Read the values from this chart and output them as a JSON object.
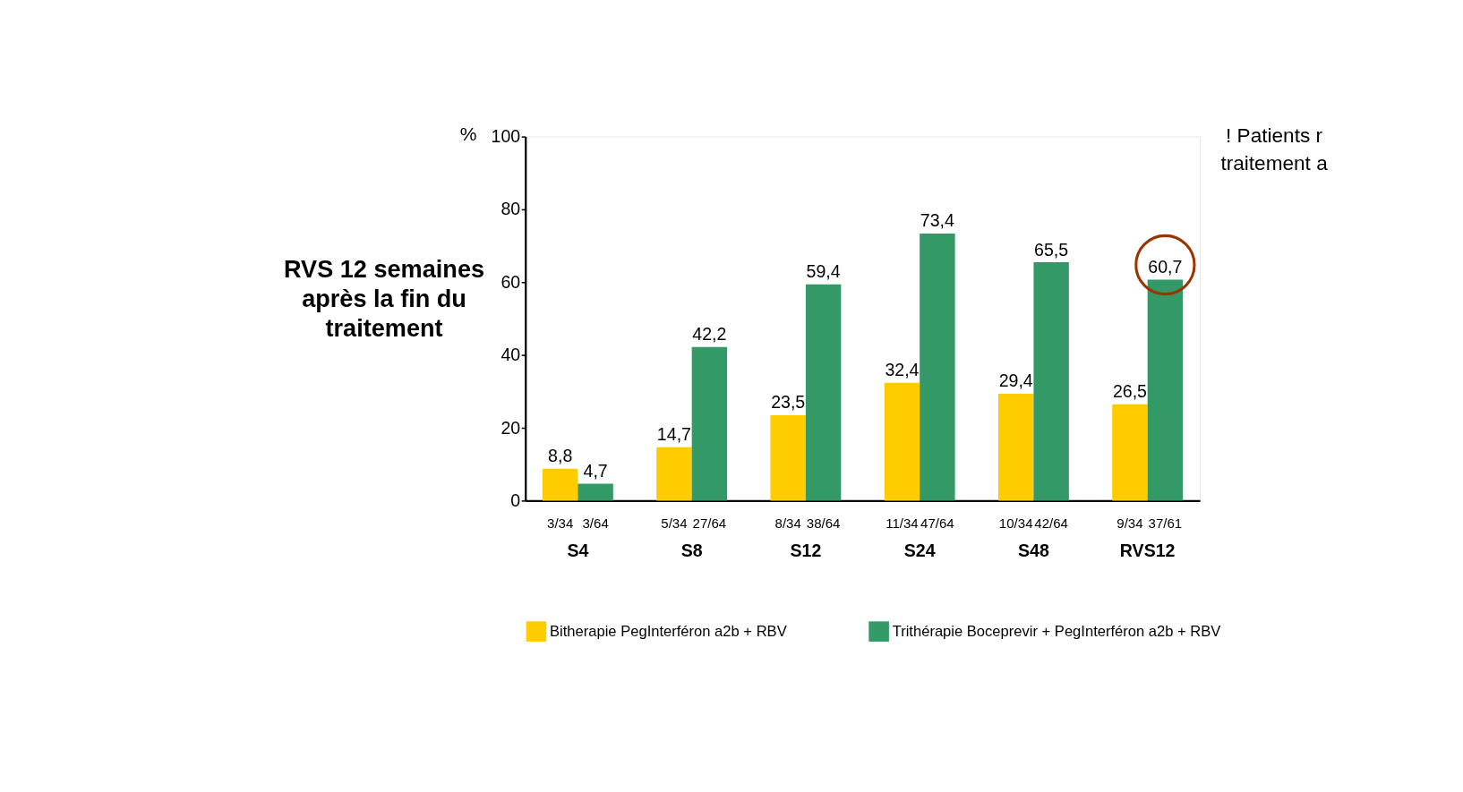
{
  "chart_data": {
    "type": "bar",
    "ylabel": "RVS 12 semaines\naprès la fin du\ntraitement",
    "categories": [
      "S4",
      "S8",
      "S12",
      "S24",
      "S48",
      "RVS12"
    ],
    "series": [
      {
        "name": "Bitherapie PegInterféron a2b + RBV",
        "color": "#ffcc00",
        "values": [
          8.8,
          14.7,
          23.5,
          32.4,
          29.4,
          26.5
        ],
        "value_labels": [
          "8,8",
          "14,7",
          "23,5",
          "32,4",
          "29,4",
          "26,5"
        ]
      },
      {
        "name": "Trithérapie Boceprevir + PegInterféron a2b + RBV",
        "color": "#339966",
        "values": [
          4.7,
          42.2,
          59.4,
          73.4,
          65.5,
          60.7
        ],
        "value_labels": [
          "4,7",
          "42,2",
          "59,4",
          "73,4",
          "65,5",
          "60,7"
        ]
      }
    ],
    "ylim": [
      0,
      100
    ],
    "yticks": [
      0,
      20,
      40,
      60,
      80,
      100
    ],
    "grid": false,
    "legend": "bottom",
    "annotations": [
      "%",
      "! Patients r\ntraitement a",
      "3/34",
      "3/64",
      "5/34",
      "27/64",
      "8/34",
      "38/64",
      "11/34",
      "47/64",
      "10/34",
      "42/64",
      "9/34",
      "37/61"
    ]
  }
}
